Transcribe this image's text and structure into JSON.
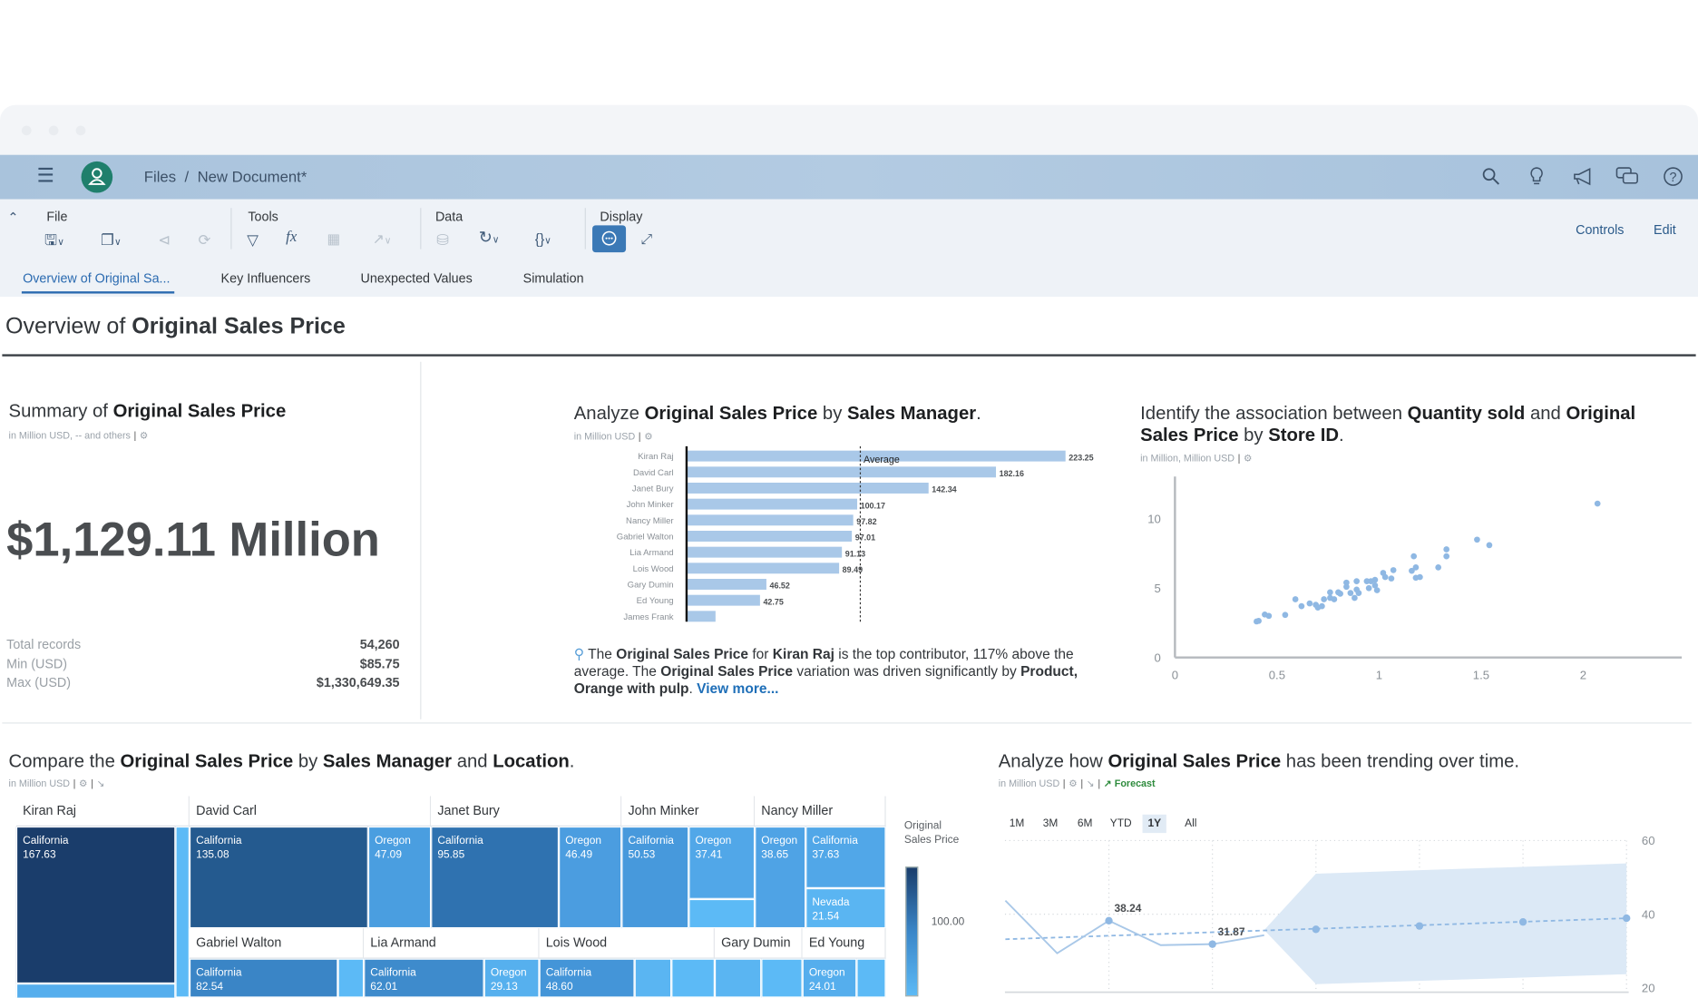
{
  "shell": {
    "breadcrumb": [
      "Files",
      "/",
      "New Document*"
    ],
    "icons": [
      "menu-icon",
      "avatar-icon",
      "search-icon",
      "lightbulb-icon",
      "megaphone-icon",
      "chat-icon",
      "help-icon"
    ]
  },
  "toolbar": {
    "groups": [
      "File",
      "Tools",
      "Data",
      "Display"
    ],
    "controls_label": "Controls",
    "edit_label": "Edit"
  },
  "tabs": [
    "Overview of Original Sa...",
    "Key Influencers",
    "Unexpected Values",
    "Simulation"
  ],
  "page_title": [
    "Overview of ",
    "Original Sales Price"
  ],
  "summary": {
    "title": [
      "Summary of ",
      "Original Sales Price"
    ],
    "subtitle": "in Million USD, -- and others",
    "big_value": "$1,129.11 Million",
    "stats": [
      {
        "label": "Total records",
        "value": "54,260"
      },
      {
        "label": "Min (USD)",
        "value": "$85.75"
      },
      {
        "label": "Max (USD)",
        "value": "$1,330,649.35"
      }
    ]
  },
  "insight": {
    "segments": [
      [
        "The ",
        false
      ],
      [
        "Original Sales Price",
        true
      ],
      [
        " for ",
        false
      ],
      [
        "Kiran Raj",
        true
      ],
      [
        " is the top contributor, 117% above the average. The ",
        false
      ],
      [
        "Original Sales Price",
        true
      ],
      [
        " variation was driven significantly by ",
        false
      ],
      [
        "Product, Orange with pulp",
        true
      ],
      [
        ". ",
        false
      ]
    ],
    "link": "View more..."
  },
  "colors": {
    "accent": "#2a6ab0",
    "bar": "#a9c8e8",
    "point": "#8fb8e3",
    "forecast": "#2e8b3d",
    "avatar": "#1f7f6c"
  },
  "chart_data": [
    {
      "type": "bar",
      "title": [
        "Analyze ",
        "Original Sales Price",
        " by ",
        "Sales Manager",
        "."
      ],
      "subtitle": "in Million USD",
      "categories": [
        "Kiran Raj",
        "David Carl",
        "Janet Bury",
        "John Minker",
        "Nancy Miller",
        "Gabriel Walton",
        "Lia Armand",
        "Lois Wood",
        "Gary Dumin",
        "Ed Young",
        "James Frank"
      ],
      "values": [
        223.25,
        182.16,
        142.34,
        100.17,
        97.82,
        97.01,
        91.13,
        89.49,
        46.52,
        42.75,
        16.47
      ],
      "labels": [
        "223.25",
        "182.16",
        "142.34",
        "100.17",
        "97.82",
        "97.01",
        "91.13",
        "89.49",
        "46.52",
        "42.75",
        ""
      ],
      "reference_line": {
        "label": "Average",
        "value": 102.65
      }
    },
    {
      "type": "scatter",
      "title": [
        "Identify the association between ",
        "Quantity sold",
        " and ",
        "Original Sales Price",
        " by ",
        "Store ID",
        "."
      ],
      "subtitle": "in Million, Million USD",
      "xlim": [
        0,
        2.45
      ],
      "ylim": [
        0,
        12.9
      ],
      "xticks": [
        "0",
        "0.5",
        "1",
        "1.5",
        "2"
      ],
      "xtick_values": [
        0,
        0.5,
        1,
        1.5,
        2
      ],
      "yticks": [
        "0",
        "5",
        "10"
      ],
      "ytick_values": [
        0,
        5,
        10
      ],
      "points": [
        [
          0.4,
          2.6
        ],
        [
          0.41,
          2.64
        ],
        [
          0.44,
          3.1
        ],
        [
          0.46,
          3.0
        ],
        [
          0.54,
          3.07
        ],
        [
          0.59,
          4.2
        ],
        [
          0.62,
          3.7
        ],
        [
          0.66,
          3.9
        ],
        [
          0.69,
          3.8
        ],
        [
          0.7,
          3.6
        ],
        [
          0.72,
          3.7
        ],
        [
          0.73,
          4.2
        ],
        [
          0.76,
          4.7
        ],
        [
          0.76,
          4.3
        ],
        [
          0.78,
          4.2
        ],
        [
          0.8,
          4.7
        ],
        [
          0.81,
          4.6
        ],
        [
          0.84,
          5.4
        ],
        [
          0.84,
          5.1
        ],
        [
          0.86,
          4.65
        ],
        [
          0.88,
          4.3
        ],
        [
          0.89,
          4.9
        ],
        [
          0.89,
          5.5
        ],
        [
          0.9,
          4.65
        ],
        [
          0.94,
          5.5
        ],
        [
          0.95,
          5.0
        ],
        [
          0.96,
          5.5
        ],
        [
          0.98,
          5.6
        ],
        [
          0.98,
          5.2
        ],
        [
          0.99,
          4.85
        ],
        [
          1.02,
          6.1
        ],
        [
          1.03,
          5.8
        ],
        [
          1.06,
          5.7
        ],
        [
          1.07,
          6.3
        ],
        [
          1.16,
          6.25
        ],
        [
          1.17,
          7.3
        ],
        [
          1.18,
          6.5
        ],
        [
          1.18,
          5.75
        ],
        [
          1.2,
          5.8
        ],
        [
          1.29,
          6.5
        ],
        [
          1.33,
          7.3
        ],
        [
          1.33,
          7.8
        ],
        [
          1.48,
          8.5
        ],
        [
          1.54,
          8.1
        ],
        [
          2.07,
          11.1
        ]
      ]
    },
    {
      "type": "treemap",
      "title": [
        "Compare the ",
        "Original Sales Price",
        " by ",
        "Sales Manager",
        " and ",
        "Location",
        "."
      ],
      "subtitle": "in Million USD",
      "legend_title": "Original Sales Price",
      "legend_tick": "100.00",
      "managers": [
        {
          "name": "Kiran Raj",
          "cells": [
            {
              "location": "California",
              "value": "167.63"
            },
            {},
            {}
          ]
        },
        {
          "name": "David Carl",
          "cells": [
            {
              "location": "California",
              "value": "135.08"
            },
            {
              "location": "Oregon",
              "value": "47.09"
            }
          ]
        },
        {
          "name": "Janet Bury",
          "cells": [
            {
              "location": "California",
              "value": "95.85"
            },
            {
              "location": "Oregon",
              "value": "46.49"
            }
          ]
        },
        {
          "name": "John Minker",
          "cells": [
            {
              "location": "California",
              "value": "50.53"
            },
            {
              "location": "Oregon",
              "value": "37.41"
            },
            {}
          ]
        },
        {
          "name": "Nancy Miller",
          "cells": [
            {
              "location": "Oregon",
              "value": "38.65"
            },
            {
              "location": "California",
              "value": "37.63"
            },
            {
              "location": "Nevada",
              "value": "21.54"
            }
          ]
        },
        {
          "name": "Gabriel Walton",
          "cells": [
            {
              "location": "California",
              "value": "82.54"
            },
            {}
          ]
        },
        {
          "name": "Lia Armand",
          "cells": [
            {
              "location": "California",
              "value": "62.01"
            },
            {
              "location": "Oregon",
              "value": "29.13"
            }
          ]
        },
        {
          "name": "Lois Wood",
          "cells": [
            {
              "location": "California",
              "value": "48.60"
            },
            {},
            {}
          ]
        },
        {
          "name": "Gary Dumin",
          "cells": [
            {},
            {}
          ]
        },
        {
          "name": "Ed Young",
          "cells": [
            {
              "location": "Oregon",
              "value": "24.01"
            },
            {}
          ]
        }
      ]
    },
    {
      "type": "line",
      "title": [
        "Analyze how ",
        "Original Sales Price",
        " has been trending over time."
      ],
      "subtitle": "in Million USD",
      "forecast_label": "Forecast",
      "ranges": [
        "1M",
        "3M",
        "6M",
        "YTD",
        "1Y",
        "All"
      ],
      "selected_range": "1Y",
      "yticks": [
        "60",
        "40",
        "20"
      ],
      "ytick_values": [
        60,
        40,
        20
      ],
      "ylim": [
        20,
        60
      ],
      "actual": {
        "x": [
          0,
          1,
          2,
          3,
          4,
          5
        ],
        "y": [
          43.7,
          29.4,
          38.24,
          31.6,
          31.87,
          34.3
        ]
      },
      "data_labels": [
        {
          "x": 2,
          "y": 38.24,
          "text": "38.24"
        },
        {
          "x": 4,
          "y": 31.87,
          "text": "31.87"
        }
      ],
      "trend": {
        "x": [
          0,
          12
        ],
        "y": [
          33.2,
          38.9
        ]
      },
      "forecast": {
        "x": [
          6,
          8,
          10,
          12
        ],
        "y": [
          35.9,
          36.8,
          37.9,
          38.9
        ]
      },
      "band": {
        "x": [
          5,
          6,
          12
        ],
        "upper": [
          35.7,
          51.0,
          53.8
        ],
        "lower": [
          35.7,
          21.0,
          23.7
        ]
      }
    }
  ]
}
